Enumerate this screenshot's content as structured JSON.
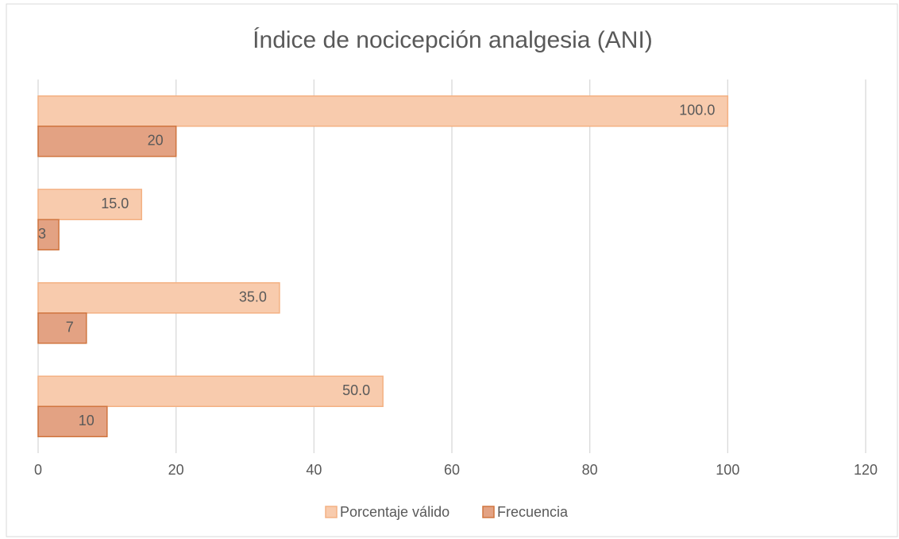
{
  "chart_data": {
    "type": "hbar",
    "title": "Índice de nocicepción analgesia (ANI)",
    "categories": [
      null,
      null,
      null,
      null
    ],
    "series": [
      {
        "name": "Porcentaje válido",
        "color": "#f8cbad",
        "values": [
          50,
          35,
          15,
          100
        ],
        "value_labels": [
          "50.0",
          "35.0",
          "15.0",
          "100.0"
        ]
      },
      {
        "name": "Frecuencia",
        "color": "#e3a283",
        "values": [
          10,
          7,
          3,
          20
        ]
      }
    ],
    "xlim": [
      0,
      120
    ],
    "xticks": [
      0,
      20,
      40,
      60,
      80,
      100,
      120
    ],
    "grid": true,
    "legend": "bottom"
  }
}
